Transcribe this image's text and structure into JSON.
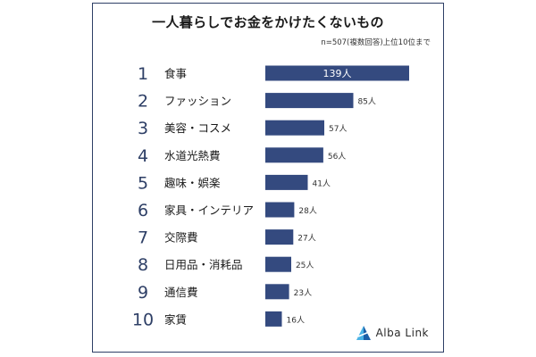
{
  "chart_data": {
    "type": "bar",
    "orientation": "horizontal",
    "title": "一人暮らしでお金をかけたくないもの",
    "note": "n=507(複数回答)上位10位まで",
    "categories": [
      "食事",
      "ファッション",
      "美容・コスメ",
      "水道光熱費",
      "趣味・娯楽",
      "家具・インテリア",
      "交際費",
      "日用品・消耗品",
      "通信費",
      "家賃"
    ],
    "ranks": [
      "1",
      "2",
      "3",
      "4",
      "5",
      "6",
      "7",
      "8",
      "9",
      "10"
    ],
    "values": [
      139,
      85,
      57,
      56,
      41,
      28,
      27,
      25,
      23,
      16
    ],
    "value_labels": [
      "139人",
      "85人",
      "57人",
      "56人",
      "41人",
      "28人",
      "27人",
      "25人",
      "23人",
      "16人"
    ],
    "xlim": [
      0,
      139
    ],
    "grid": false,
    "legend": "none",
    "bar_color": "#344a7f",
    "rank_color": "#2e3f66",
    "border_color": "#2e3f66"
  },
  "brand": {
    "name": "Alba Link",
    "icon": "alba-link-logo-icon",
    "logo_color_dark": "#1b5fa8",
    "logo_color_light": "#4ab3e6"
  }
}
